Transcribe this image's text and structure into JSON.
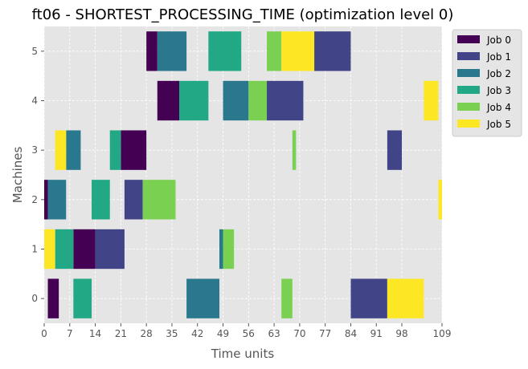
{
  "chart_data": {
    "type": "gantt",
    "title": "ft06 - SHORTEST_PROCESSING_TIME (optimization level 0)",
    "xlabel": "Time units",
    "ylabel": "Machines",
    "xlim": [
      0,
      109
    ],
    "x_ticks": [
      0,
      7,
      14,
      21,
      28,
      35,
      42,
      49,
      56,
      63,
      70,
      77,
      84,
      91,
      98,
      109
    ],
    "y_categories": [
      "0",
      "1",
      "2",
      "3",
      "4",
      "5"
    ],
    "grid": true,
    "legend_position": "upper right, outside plot",
    "series": [
      {
        "name": "Job 0",
        "color": "#440154",
        "tasks": [
          {
            "machine": 0,
            "start": 1,
            "end": 4
          },
          {
            "machine": 1,
            "start": 8,
            "end": 14
          },
          {
            "machine": 2,
            "start": 0,
            "end": 1
          },
          {
            "machine": 3,
            "start": 21,
            "end": 28
          },
          {
            "machine": 4,
            "start": 31,
            "end": 37
          },
          {
            "machine": 5,
            "start": 28,
            "end": 31
          }
        ]
      },
      {
        "name": "Job 1",
        "color": "#414487",
        "tasks": [
          {
            "machine": 0,
            "start": 84,
            "end": 94
          },
          {
            "machine": 1,
            "start": 14,
            "end": 22
          },
          {
            "machine": 2,
            "start": 22,
            "end": 27
          },
          {
            "machine": 3,
            "start": 94,
            "end": 98
          },
          {
            "machine": 4,
            "start": 61,
            "end": 71
          },
          {
            "machine": 5,
            "start": 74,
            "end": 84
          }
        ]
      },
      {
        "name": "Job 2",
        "color": "#2a788e",
        "tasks": [
          {
            "machine": 0,
            "start": 39,
            "end": 48
          },
          {
            "machine": 1,
            "start": 48,
            "end": 49
          },
          {
            "machine": 2,
            "start": 1,
            "end": 6
          },
          {
            "machine": 3,
            "start": 6,
            "end": 10
          },
          {
            "machine": 4,
            "start": 49,
            "end": 56
          },
          {
            "machine": 5,
            "start": 31,
            "end": 39
          }
        ]
      },
      {
        "name": "Job 3",
        "color": "#22a884",
        "tasks": [
          {
            "machine": 0,
            "start": 8,
            "end": 13
          },
          {
            "machine": 1,
            "start": 3,
            "end": 8
          },
          {
            "machine": 2,
            "start": 13,
            "end": 18
          },
          {
            "machine": 3,
            "start": 18,
            "end": 21
          },
          {
            "machine": 4,
            "start": 37,
            "end": 45
          },
          {
            "machine": 5,
            "start": 45,
            "end": 54
          }
        ]
      },
      {
        "name": "Job 4",
        "color": "#7ad151",
        "tasks": [
          {
            "machine": 0,
            "start": 65,
            "end": 68
          },
          {
            "machine": 1,
            "start": 49,
            "end": 52
          },
          {
            "machine": 2,
            "start": 27,
            "end": 36
          },
          {
            "machine": 3,
            "start": 68,
            "end": 69
          },
          {
            "machine": 4,
            "start": 56,
            "end": 61
          },
          {
            "machine": 5,
            "start": 61,
            "end": 65
          }
        ]
      },
      {
        "name": "Job 5",
        "color": "#fde725",
        "tasks": [
          {
            "machine": 0,
            "start": 94,
            "end": 104
          },
          {
            "machine": 1,
            "start": 0,
            "end": 3
          },
          {
            "machine": 2,
            "start": 108,
            "end": 109
          },
          {
            "machine": 3,
            "start": 3,
            "end": 6
          },
          {
            "machine": 4,
            "start": 104,
            "end": 108
          },
          {
            "machine": 5,
            "start": 65,
            "end": 74
          }
        ]
      }
    ]
  }
}
